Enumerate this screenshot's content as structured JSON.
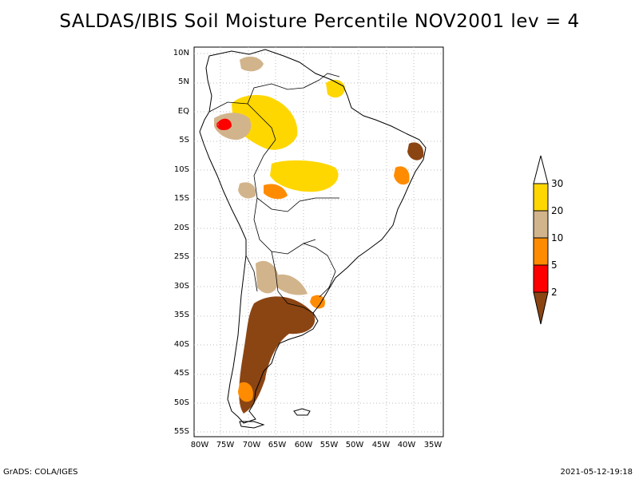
{
  "title": "SALDAS/IBIS Soil Moisture Percentile NOV2001 lev = 4",
  "lat_labels": [
    "10N",
    "5N",
    "EQ",
    "5S",
    "10S",
    "15S",
    "20S",
    "25S",
    "30S",
    "35S",
    "40S",
    "45S",
    "50S",
    "55S"
  ],
  "lon_labels": [
    "80W",
    "75W",
    "70W",
    "65W",
    "60W",
    "55W",
    "50W",
    "45W",
    "40W",
    "35W"
  ],
  "colorbar": {
    "labels": [
      "30",
      "20",
      "10",
      "5",
      "2"
    ],
    "colors": {
      "above30": "#ffffff",
      "c20_30": "#ffd700",
      "c10_20": "#d2b48c",
      "c5_10": "#ff8c00",
      "c2_5": "#ff0000",
      "below2": "#8b4513"
    }
  },
  "footer": {
    "left": "GrADS: COLA/IGES",
    "right": "2021-05-12-19:18"
  }
}
